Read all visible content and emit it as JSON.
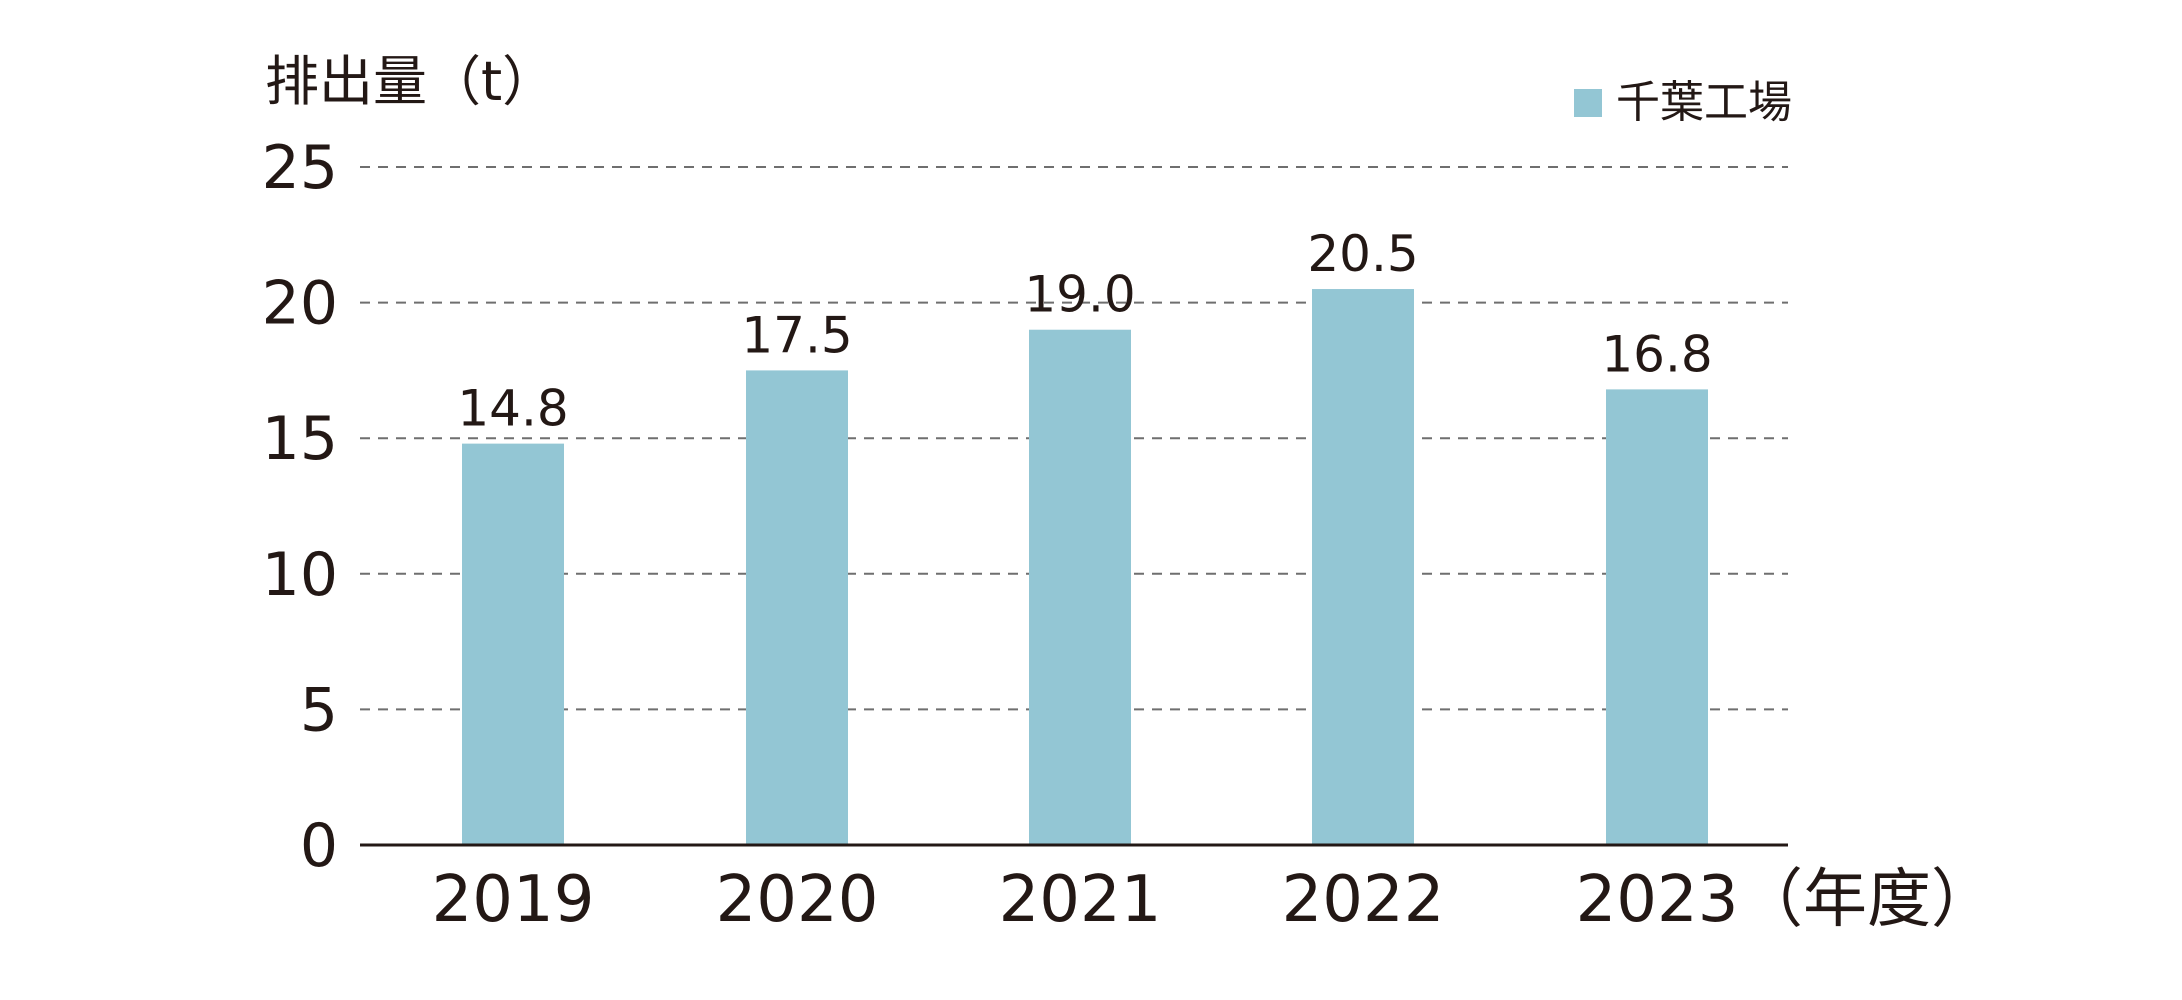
{
  "chart_data": {
    "type": "bar",
    "title": "",
    "ylabel": "排出量（t）",
    "xlabel_suffix": "（年度）",
    "categories": [
      "2019",
      "2020",
      "2021",
      "2022",
      "2023"
    ],
    "series": [
      {
        "name": "千葉工場",
        "values": [
          14.8,
          17.5,
          19.0,
          20.5,
          16.8
        ],
        "value_labels": [
          "14.8",
          "17.5",
          "19.0",
          "20.5",
          "16.8"
        ],
        "color": "#93c6d4"
      }
    ],
    "yticks": [
      "0",
      "5",
      "10",
      "15",
      "20",
      "25"
    ],
    "ylim": [
      0,
      25
    ],
    "grid": "dashed",
    "legend_position": "top-right"
  }
}
